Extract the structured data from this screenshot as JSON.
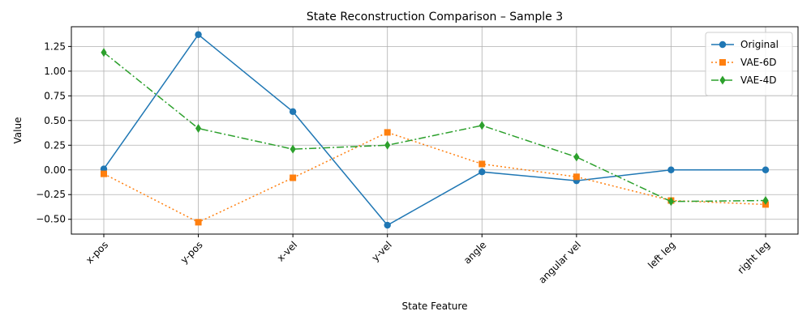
{
  "chart_data": {
    "type": "line",
    "title": "State Reconstruction Comparison – Sample 3",
    "xlabel": "State Feature",
    "ylabel": "Value",
    "categories": [
      "x-pos",
      "y-pos",
      "x-vel",
      "y-vel",
      "angle",
      "angular vel",
      "left leg",
      "right leg"
    ],
    "ylim": [
      -0.65,
      1.45
    ],
    "yticks": [
      -0.5,
      -0.25,
      0.0,
      0.25,
      0.5,
      0.75,
      1.0,
      1.25
    ],
    "ytick_labels": [
      "−0.50",
      "−0.25",
      "0.00",
      "0.25",
      "0.50",
      "0.75",
      "1.00",
      "1.25"
    ],
    "grid": true,
    "legend_position": "top-right",
    "series": [
      {
        "name": "Original",
        "color": "#1f77b4",
        "marker": "circle",
        "linestyle": "solid",
        "values": [
          0.01,
          1.37,
          0.59,
          -0.56,
          -0.02,
          -0.11,
          0.0,
          0.0
        ]
      },
      {
        "name": "VAE-6D",
        "color": "#ff7f0e",
        "marker": "square",
        "linestyle": "dotted",
        "values": [
          -0.04,
          -0.53,
          -0.08,
          0.38,
          0.06,
          -0.07,
          -0.31,
          -0.35
        ]
      },
      {
        "name": "VAE-4D",
        "color": "#2ca02c",
        "marker": "diamond",
        "linestyle": "dashdot",
        "values": [
          1.19,
          0.42,
          0.21,
          0.25,
          0.45,
          0.13,
          -0.32,
          -0.31
        ]
      }
    ]
  }
}
